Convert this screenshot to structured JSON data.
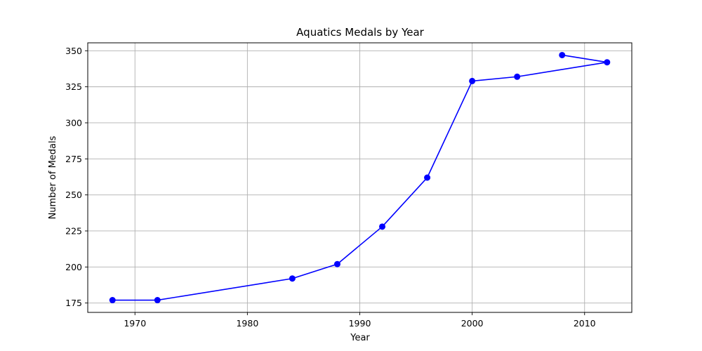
{
  "chart_data": {
    "type": "line",
    "title": "Aquatics Medals by Year",
    "xlabel": "Year",
    "ylabel": "Number of Medals",
    "xlim": [
      1965.8,
      2014.2
    ],
    "ylim": [
      168.5,
      355.5
    ],
    "xticks": [
      1970,
      1980,
      1990,
      2000,
      2010
    ],
    "yticks": [
      175,
      200,
      225,
      250,
      275,
      300,
      325,
      350
    ],
    "grid": true,
    "series": [
      {
        "color": "#0000ff",
        "marker": "circle",
        "points": [
          {
            "x": 1968,
            "y": 177
          },
          {
            "x": 1972,
            "y": 177
          },
          {
            "x": 1984,
            "y": 192
          },
          {
            "x": 1988,
            "y": 202
          },
          {
            "x": 1992,
            "y": 228
          },
          {
            "x": 1996,
            "y": 262
          },
          {
            "x": 2000,
            "y": 329
          },
          {
            "x": 2004,
            "y": 332
          },
          {
            "x": 2012,
            "y": 342
          },
          {
            "x": 2008,
            "y": 347
          }
        ]
      }
    ]
  }
}
